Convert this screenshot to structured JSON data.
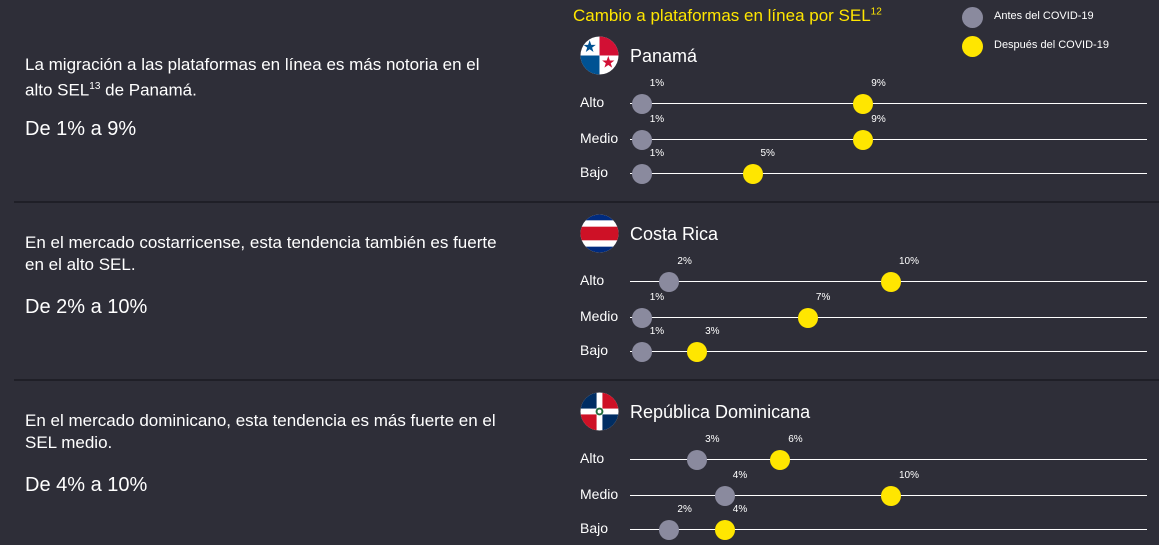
{
  "title_text": "Cambio a plataformas en línea por SEL",
  "title_sup": "12",
  "legend": [
    {
      "label": "Antes del COVID-19",
      "color": "#8a8a9e"
    },
    {
      "label": "Después del COVID-19",
      "color": "#ffe600"
    }
  ],
  "colors": {
    "background": "#2e2e38",
    "accent": "#ffe600",
    "before": "#8a8a9e",
    "after": "#ffe600"
  },
  "panels": [
    {
      "desc_before_sup": "La migración a las plataformas en línea es más notoria en el alto SEL",
      "desc_sup": "13",
      "desc_after_sup": " de Panamá.",
      "headline": "De 1% a 9%",
      "flag_icon": "panama-flag-icon"
    },
    {
      "desc_before_sup": "En el mercado costarricense, esta tendencia también es fuerte en el alto SEL.",
      "desc_sup": "",
      "desc_after_sup": "",
      "headline": "De 2% a 10%",
      "flag_icon": "costa-rica-flag-icon"
    },
    {
      "desc_before_sup": "En el mercado dominicano, esta tendencia es más fuerte en el SEL medio.",
      "desc_sup": "",
      "desc_after_sup": "",
      "headline": "De 4% a 10%",
      "flag_icon": "dominican-republic-flag-icon"
    }
  ],
  "chart_data": {
    "type": "dot-plot",
    "unit": "%",
    "legend_placement": "top-right",
    "series": [
      {
        "name": "Antes del COVID-19"
      },
      {
        "name": "Después del COVID-19"
      }
    ],
    "countries": [
      {
        "name": "Panamá",
        "rows": [
          {
            "label": "Alto",
            "before": 1,
            "after": 9
          },
          {
            "label": "Medio",
            "before": 1,
            "after": 9
          },
          {
            "label": "Bajo",
            "before": 1,
            "after": 5
          }
        ]
      },
      {
        "name": "Costa Rica",
        "rows": [
          {
            "label": "Alto",
            "before": 2,
            "after": 10
          },
          {
            "label": "Medio",
            "before": 1,
            "after": 7
          },
          {
            "label": "Bajo",
            "before": 1,
            "after": 3
          }
        ]
      },
      {
        "name": "República Dominicana",
        "rows": [
          {
            "label": "Alto",
            "before": 3,
            "after": 6
          },
          {
            "label": "Medio",
            "before": 4,
            "after": 10
          },
          {
            "label": "Bajo",
            "before": 2,
            "after": 4
          }
        ]
      }
    ]
  }
}
